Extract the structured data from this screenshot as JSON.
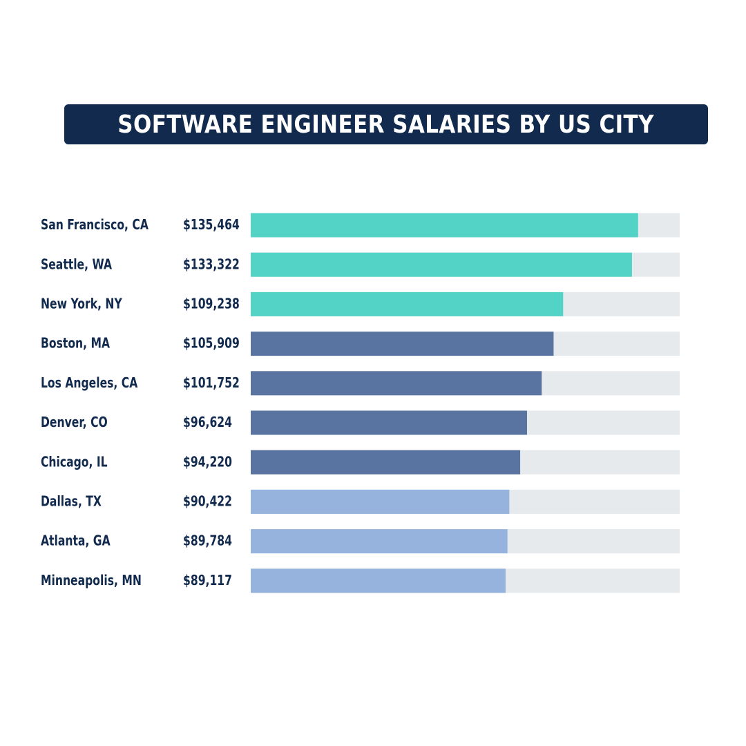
{
  "title": "SOFTWARE ENGINEER SALARIES BY US CITY",
  "colors": {
    "title_bg": "#112a4d",
    "text": "#112a4d",
    "track": "#e7eaed",
    "tier_top": "#53d2c6",
    "tier_mid": "#5974a0",
    "tier_low": "#95b3dd"
  },
  "chart_data": {
    "type": "bar",
    "orientation": "horizontal",
    "title": "SOFTWARE ENGINEER SALARIES BY US CITY",
    "categories": [
      "San Francisco, CA",
      "Seattle, WA",
      "New York, NY",
      "Boston, MA",
      "Los Angeles, CA",
      "Denver, CO",
      "Chicago, IL",
      "Dallas, TX",
      "Atlanta, GA",
      "Minneapolis, MN"
    ],
    "values": [
      135464,
      133322,
      109238,
      105909,
      101752,
      96624,
      94220,
      90422,
      89784,
      89117
    ],
    "value_labels": [
      "$135,464",
      "$133,322",
      "$109,238",
      "$105,909",
      "$101,752",
      "$96,624",
      "$94,220",
      "$90,422",
      "$89,784",
      "$89,117"
    ],
    "color_tiers": [
      "top",
      "top",
      "top",
      "mid",
      "mid",
      "mid",
      "mid",
      "low",
      "low",
      "low"
    ],
    "xlim": [
      0,
      150000
    ],
    "grid": false,
    "legend": "none"
  }
}
